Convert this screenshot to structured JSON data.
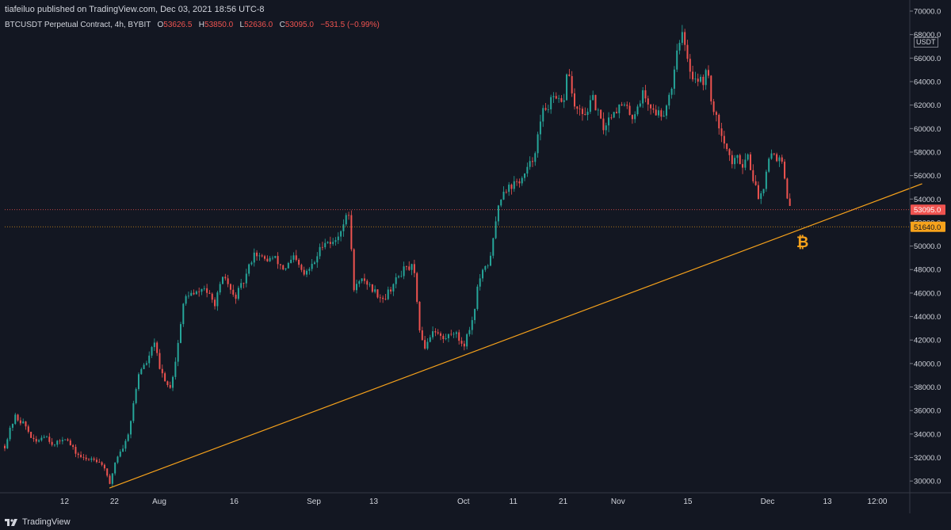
{
  "header": {
    "publish_line": "tiafeiluo published on TradingView.com, Dec 03, 2021 18:56 UTC-8"
  },
  "legend": {
    "symbol": "BTCUSDT Perpetual Contract, 4h, BYBIT",
    "o_label": "O",
    "o_value": "53626.5",
    "h_label": "H",
    "h_value": "53850.0",
    "l_label": "L",
    "l_value": "52636.0",
    "c_label": "C",
    "c_value": "53095.0",
    "change": "−531.5 (−0.99%)"
  },
  "axis": {
    "currency": "USDT"
  },
  "footer": {
    "brand": "TradingView"
  },
  "colors": {
    "background": "#131722",
    "up": "#26a69a",
    "down": "#ef5350",
    "trendline": "#f7a21b",
    "text": "#d1d4dc",
    "grid": "#2a2e39"
  },
  "chart_data": {
    "type": "candlestick",
    "title": "BTCUSDT Perpetual Contract, 4h, BYBIT",
    "xlabel": "",
    "ylabel": "USDT",
    "ylim": [
      29000,
      70000
    ],
    "x_day_range": [
      0,
      158
    ],
    "y_ticks": [
      30000,
      32000,
      34000,
      36000,
      38000,
      40000,
      42000,
      44000,
      46000,
      48000,
      50000,
      52000,
      54000,
      56000,
      58000,
      60000,
      62000,
      64000,
      66000,
      68000,
      70000
    ],
    "x_ticks": [
      {
        "day": 12,
        "label": "12"
      },
      {
        "day": 22,
        "label": "22"
      },
      {
        "day": 31,
        "label": "Aug"
      },
      {
        "day": 46,
        "label": "16"
      },
      {
        "day": 62,
        "label": "Sep"
      },
      {
        "day": 74,
        "label": "13"
      },
      {
        "day": 92,
        "label": "Oct"
      },
      {
        "day": 102,
        "label": "11"
      },
      {
        "day": 112,
        "label": "21"
      },
      {
        "day": 123,
        "label": "Nov"
      },
      {
        "day": 137,
        "label": "15"
      },
      {
        "day": 153,
        "label": "Dec"
      },
      {
        "day": 165,
        "label": "13"
      },
      {
        "day": 175,
        "label": "12:00"
      }
    ],
    "price_path": [
      {
        "day": 0,
        "price": 33000
      },
      {
        "day": 2,
        "price": 35500
      },
      {
        "day": 4,
        "price": 34800
      },
      {
        "day": 6,
        "price": 33200
      },
      {
        "day": 8,
        "price": 34000
      },
      {
        "day": 10,
        "price": 33000
      },
      {
        "day": 12,
        "price": 33800
      },
      {
        "day": 14,
        "price": 32500
      },
      {
        "day": 16,
        "price": 31800
      },
      {
        "day": 18,
        "price": 32000
      },
      {
        "day": 20,
        "price": 31200
      },
      {
        "day": 21,
        "price": 29500
      },
      {
        "day": 22,
        "price": 31500
      },
      {
        "day": 23,
        "price": 32500
      },
      {
        "day": 24,
        "price": 33000
      },
      {
        "day": 25,
        "price": 34500
      },
      {
        "day": 26,
        "price": 37000
      },
      {
        "day": 27,
        "price": 39500
      },
      {
        "day": 28,
        "price": 39800
      },
      {
        "day": 29,
        "price": 40500
      },
      {
        "day": 30,
        "price": 42000
      },
      {
        "day": 31,
        "price": 39500
      },
      {
        "day": 32,
        "price": 38800
      },
      {
        "day": 33,
        "price": 37800
      },
      {
        "day": 34,
        "price": 39500
      },
      {
        "day": 35,
        "price": 42500
      },
      {
        "day": 36,
        "price": 45500
      },
      {
        "day": 37,
        "price": 46000
      },
      {
        "day": 38,
        "price": 45800
      },
      {
        "day": 40,
        "price": 46500
      },
      {
        "day": 42,
        "price": 45000
      },
      {
        "day": 44,
        "price": 47500
      },
      {
        "day": 46,
        "price": 45500
      },
      {
        "day": 48,
        "price": 47000
      },
      {
        "day": 50,
        "price": 49500
      },
      {
        "day": 52,
        "price": 48800
      },
      {
        "day": 54,
        "price": 49000
      },
      {
        "day": 56,
        "price": 48000
      },
      {
        "day": 58,
        "price": 49000
      },
      {
        "day": 60,
        "price": 47500
      },
      {
        "day": 62,
        "price": 48500
      },
      {
        "day": 64,
        "price": 50500
      },
      {
        "day": 66,
        "price": 50200
      },
      {
        "day": 68,
        "price": 52000
      },
      {
        "day": 69,
        "price": 52800
      },
      {
        "day": 70,
        "price": 46500
      },
      {
        "day": 71,
        "price": 46800
      },
      {
        "day": 72,
        "price": 47200
      },
      {
        "day": 74,
        "price": 46200
      },
      {
        "day": 76,
        "price": 45500
      },
      {
        "day": 78,
        "price": 46800
      },
      {
        "day": 80,
        "price": 48000
      },
      {
        "day": 82,
        "price": 48200
      },
      {
        "day": 83,
        "price": 43500
      },
      {
        "day": 84,
        "price": 41200
      },
      {
        "day": 86,
        "price": 43000
      },
      {
        "day": 88,
        "price": 42000
      },
      {
        "day": 90,
        "price": 42800
      },
      {
        "day": 92,
        "price": 41500
      },
      {
        "day": 94,
        "price": 44000
      },
      {
        "day": 95,
        "price": 47000
      },
      {
        "day": 96,
        "price": 47800
      },
      {
        "day": 97,
        "price": 48500
      },
      {
        "day": 98,
        "price": 50500
      },
      {
        "day": 99,
        "price": 53500
      },
      {
        "day": 100,
        "price": 54800
      },
      {
        "day": 102,
        "price": 55200
      },
      {
        "day": 104,
        "price": 55800
      },
      {
        "day": 106,
        "price": 57500
      },
      {
        "day": 108,
        "price": 61500
      },
      {
        "day": 110,
        "price": 62500
      },
      {
        "day": 112,
        "price": 62000
      },
      {
        "day": 113,
        "price": 65500
      },
      {
        "day": 114,
        "price": 62000
      },
      {
        "day": 116,
        "price": 61000
      },
      {
        "day": 118,
        "price": 62500
      },
      {
        "day": 120,
        "price": 60000
      },
      {
        "day": 122,
        "price": 61500
      },
      {
        "day": 124,
        "price": 62000
      },
      {
        "day": 126,
        "price": 61000
      },
      {
        "day": 128,
        "price": 63000
      },
      {
        "day": 130,
        "price": 61500
      },
      {
        "day": 132,
        "price": 61200
      },
      {
        "day": 133,
        "price": 62500
      },
      {
        "day": 134,
        "price": 64000
      },
      {
        "day": 135,
        "price": 67500
      },
      {
        "day": 136,
        "price": 68000
      },
      {
        "day": 137,
        "price": 65500
      },
      {
        "day": 138,
        "price": 64500
      },
      {
        "day": 140,
        "price": 64000
      },
      {
        "day": 141,
        "price": 65000
      },
      {
        "day": 142,
        "price": 61500
      },
      {
        "day": 143,
        "price": 60500
      },
      {
        "day": 144,
        "price": 59500
      },
      {
        "day": 145,
        "price": 58000
      },
      {
        "day": 146,
        "price": 57000
      },
      {
        "day": 147,
        "price": 57500
      },
      {
        "day": 148,
        "price": 57000
      },
      {
        "day": 149,
        "price": 57800
      },
      {
        "day": 150,
        "price": 56000
      },
      {
        "day": 151,
        "price": 54200
      },
      {
        "day": 152,
        "price": 54500
      },
      {
        "day": 153,
        "price": 57500
      },
      {
        "day": 154,
        "price": 58000
      },
      {
        "day": 155,
        "price": 57500
      },
      {
        "day": 156,
        "price": 57000
      },
      {
        "day": 157,
        "price": 53626
      },
      {
        "day": 158,
        "price": 53095
      }
    ],
    "trendline": {
      "start": {
        "day": 21,
        "price": 29400
      },
      "end": {
        "day": 184,
        "price": 55300
      },
      "color": "#f7a21b"
    },
    "price_labels": [
      {
        "value": 53095.0,
        "label": "53095.0",
        "color": "#ef5350",
        "line": "dotted"
      },
      {
        "value": 51640.0,
        "label": "51640.0",
        "color": "#f7a21b",
        "line": "dotted"
      }
    ],
    "marker": {
      "type": "bitcoin",
      "day": 160,
      "price": 50300,
      "color": "#f7a21b"
    }
  }
}
